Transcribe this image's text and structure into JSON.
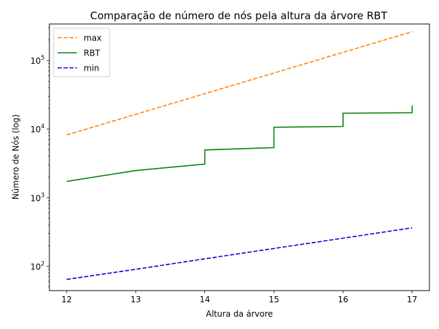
{
  "chart_data": {
    "type": "line",
    "title": "Comparação de número de nós pela altura da árvore RBT",
    "xlabel": "Altura da árvore",
    "ylabel": "Número de Nós (log)",
    "yscale": "log",
    "xlim": [
      11.75,
      17.25
    ],
    "ylim": [
      44,
      340000
    ],
    "xticks": [
      12,
      13,
      14,
      15,
      16,
      17
    ],
    "xtick_labels": [
      "12",
      "13",
      "14",
      "15",
      "16",
      "17"
    ],
    "yticks": [
      100,
      1000,
      10000,
      100000
    ],
    "ytick_labels": [
      {
        "base": "10",
        "exp": "2"
      },
      {
        "base": "10",
        "exp": "3"
      },
      {
        "base": "10",
        "exp": "4"
      },
      {
        "base": "10",
        "exp": "5"
      }
    ],
    "grid": false,
    "legend_position": "top-left",
    "series": [
      {
        "name": "max",
        "color": "#ff7f0e",
        "style": "dashed",
        "x": [
          12,
          13,
          14,
          15,
          16,
          17
        ],
        "y": [
          8191,
          16383,
          32767,
          65535,
          131071,
          262143
        ]
      },
      {
        "name": "RBT",
        "color": "#008000",
        "style": "solid",
        "x": [
          12,
          13,
          14,
          14,
          15,
          15,
          16,
          16,
          17,
          17
        ],
        "y": [
          1720,
          2480,
          3080,
          4950,
          5350,
          10600,
          10900,
          17000,
          17300,
          22000
        ]
      },
      {
        "name": "min",
        "color": "#0000cd",
        "style": "dashed",
        "x": [
          12,
          13,
          14,
          15,
          16,
          17
        ],
        "y": [
          64,
          90,
          128,
          181,
          256,
          362
        ]
      }
    ]
  }
}
